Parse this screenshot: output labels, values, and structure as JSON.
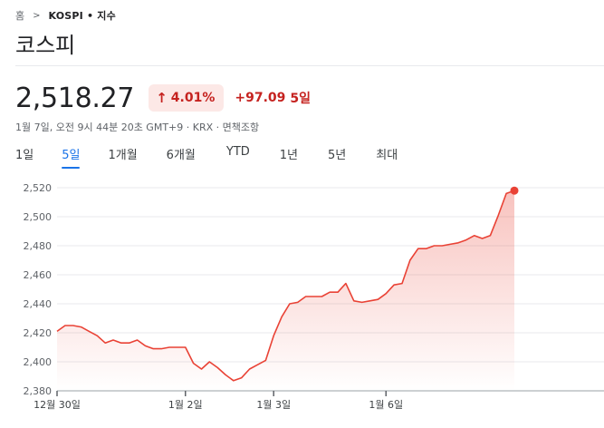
{
  "breadcrumb": {
    "home": "홈",
    "separator": ">",
    "current": "KOSPI • 지수"
  },
  "title": "코스피",
  "quote": {
    "price": "2,518.27",
    "change_percent": "4.01%",
    "change_arrow": "↑",
    "change_abs": "+97.09",
    "change_period": "5일",
    "meta": "1월 7일, 오전 9시 44분 20초 GMT+9 · KRX · 면책조항"
  },
  "tabs": [
    {
      "label": "1일",
      "active": false
    },
    {
      "label": "5일",
      "active": true
    },
    {
      "label": "1개월",
      "active": false
    },
    {
      "label": "6개월",
      "active": false
    },
    {
      "label": "YTD",
      "active": false
    },
    {
      "label": "1년",
      "active": false
    },
    {
      "label": "5년",
      "active": false
    },
    {
      "label": "최대",
      "active": false
    }
  ],
  "colors": {
    "up": "#c5221f",
    "up_bg": "#fce8e6",
    "line": "#e94235",
    "accent": "#1a73e8"
  },
  "chart_data": {
    "type": "area",
    "title": "",
    "xlabel": "",
    "ylabel": "",
    "ylim": [
      2380,
      2525
    ],
    "y_ticks": [
      2380,
      2400,
      2420,
      2440,
      2460,
      2480,
      2500,
      2520
    ],
    "y_tick_labels": [
      "2,380",
      "2,400",
      "2,420",
      "2,440",
      "2,460",
      "2,480",
      "2,500",
      "2,520"
    ],
    "x_ticks": [
      {
        "label": "12월 30일",
        "index": 0
      },
      {
        "label": "1월 2일",
        "index": 16
      },
      {
        "label": "1월 3일",
        "index": 27
      },
      {
        "label": "1월 6일",
        "index": 41
      }
    ],
    "x_count": 58,
    "grid": true,
    "series": [
      {
        "values": [
          2421,
          2425,
          2425,
          2424,
          2421,
          2418,
          2413,
          2415,
          2413,
          2413,
          2415,
          2411,
          2409,
          2409,
          2410,
          2410,
          2410,
          2399,
          2395,
          2400,
          2396,
          2391,
          2387,
          2389,
          2395,
          2398,
          2401,
          2418,
          2431,
          2440,
          2441,
          2445,
          2445,
          2445,
          2448,
          2448,
          2454,
          2442,
          2441,
          2442,
          2443,
          2447,
          2453,
          2454,
          2470,
          2478,
          2478,
          2480,
          2480,
          2481,
          2482,
          2484,
          2487,
          2485,
          2487,
          2501,
          2516,
          2518
        ]
      }
    ],
    "last_point_marker": true
  }
}
